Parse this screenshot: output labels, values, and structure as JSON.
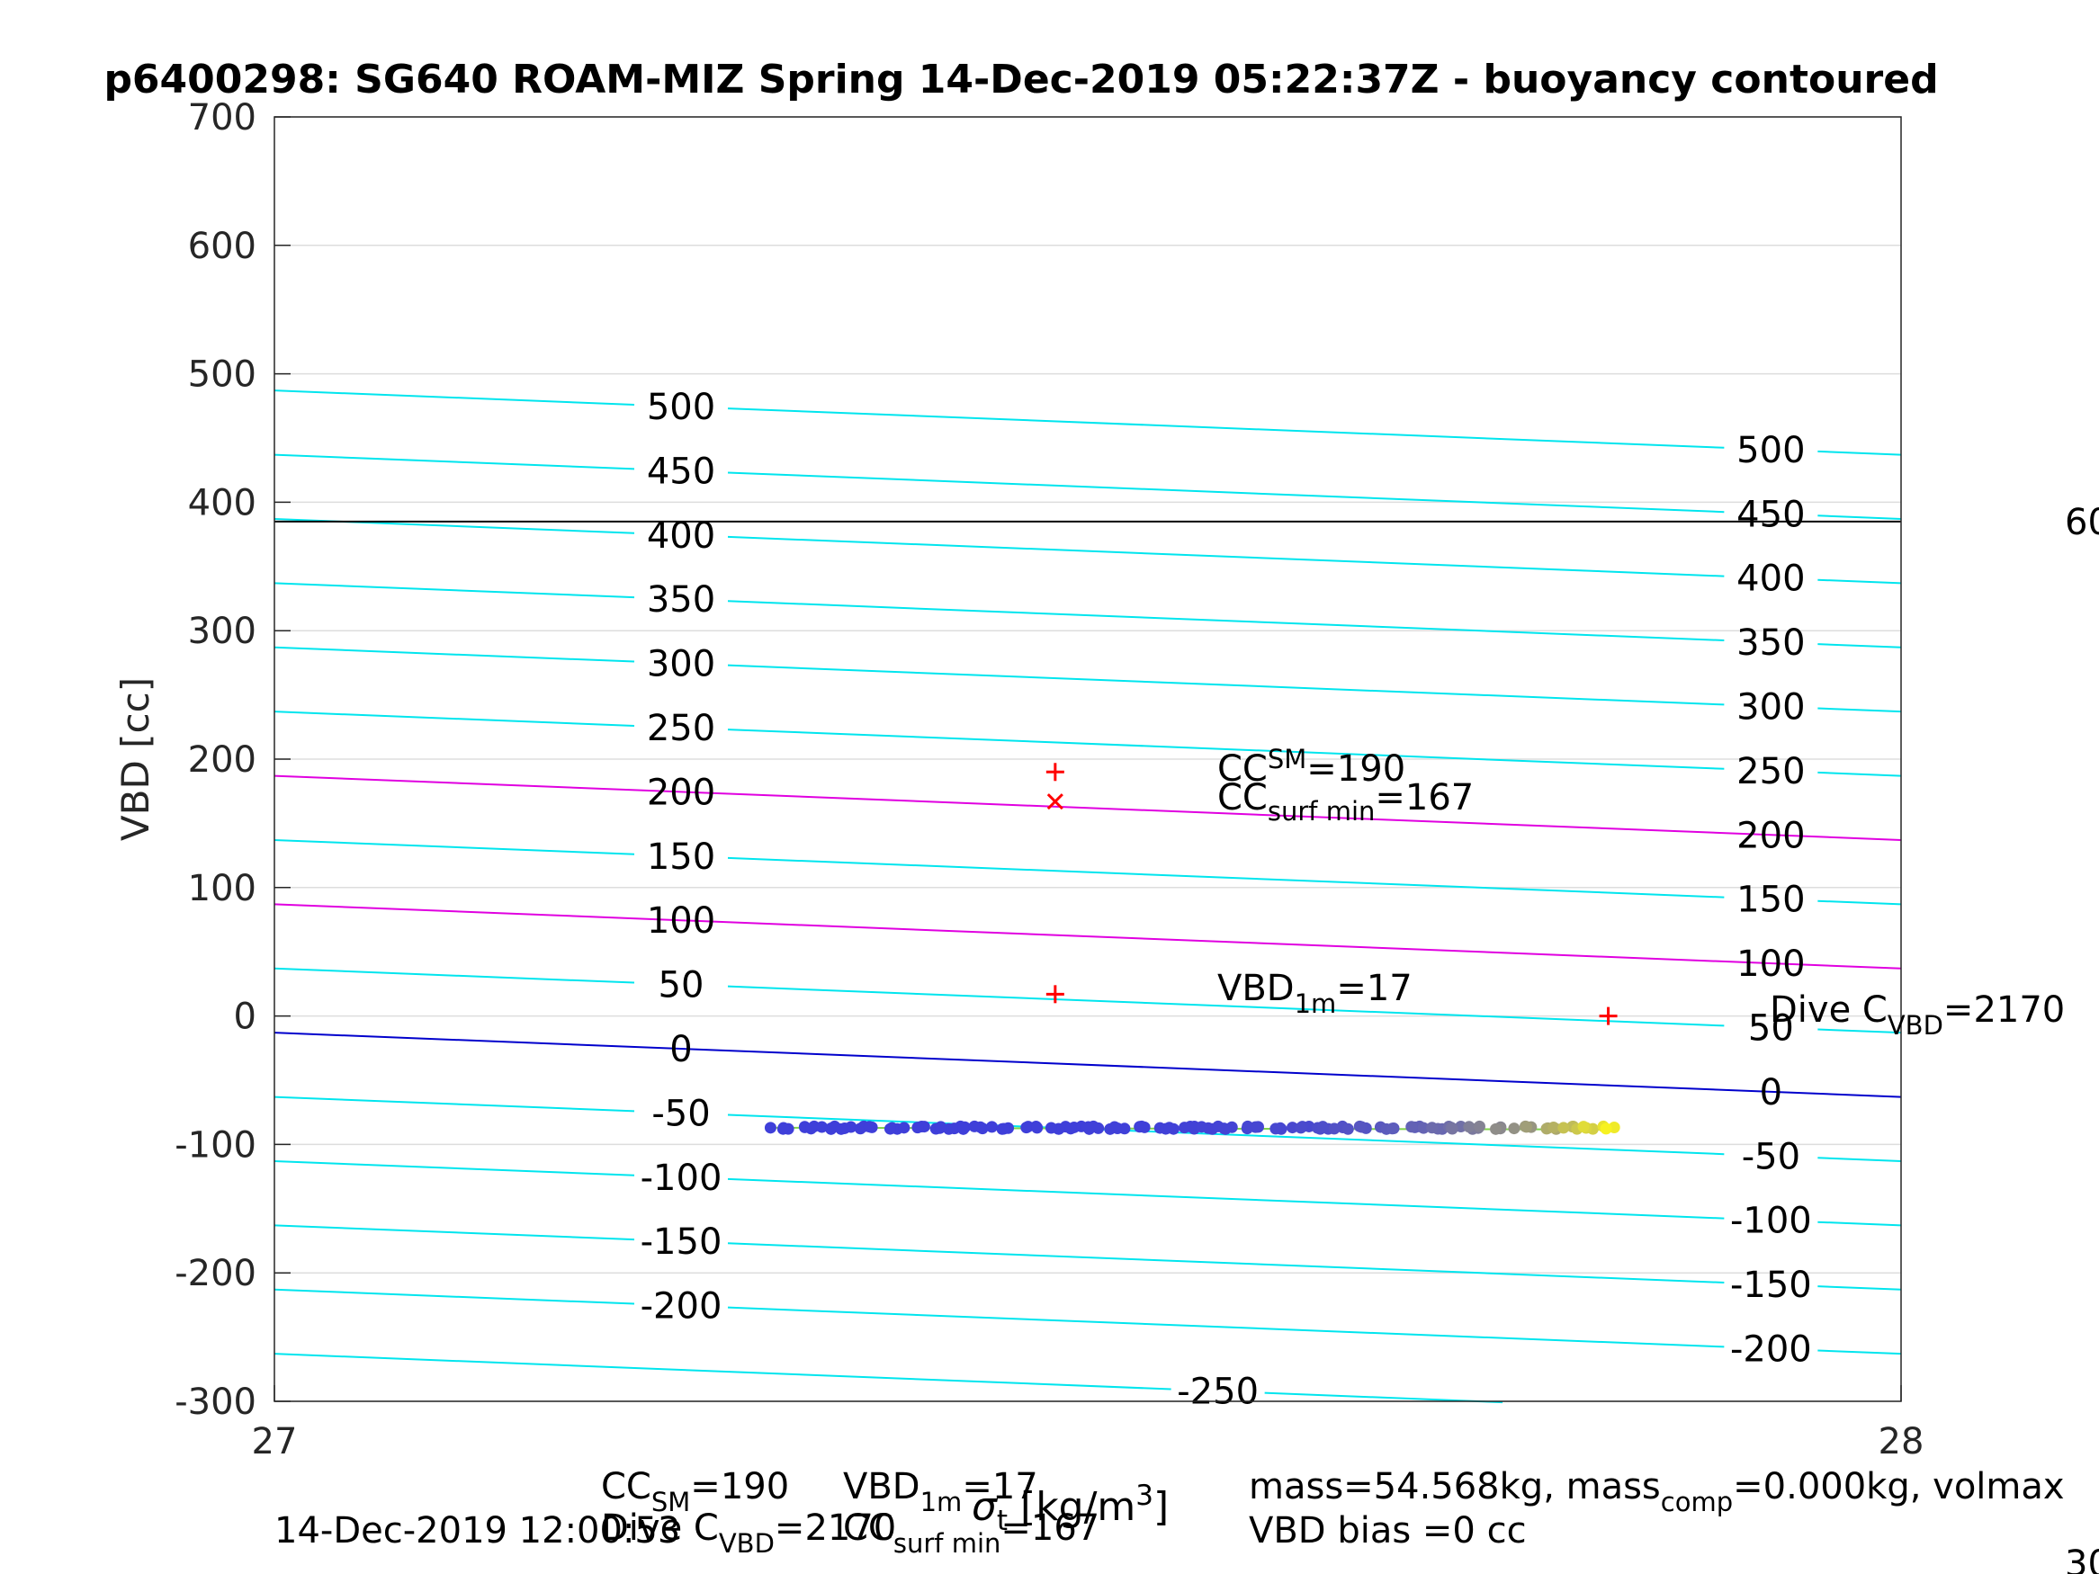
{
  "chart_data": {
    "type": "line",
    "title": "p6400298: SG640 ROAM-MIZ Spring 14-Dec-2019 05:22:37Z - buoyancy contoured",
    "xlabel": "σ",
    "xlabel_sub": "t",
    "xlabel_unit": " [kg/m",
    "xlabel_unit_sup": "3",
    "xlabel_unit_end": "]",
    "ylabel": "VBD [cc]",
    "xlim": [
      27,
      28
    ],
    "ylim": [
      -300,
      700
    ],
    "x_ticks": [
      "27",
      "28"
    ],
    "y_ticks": [
      "-300",
      "-200",
      "-100",
      "0",
      "100",
      "200",
      "300",
      "400",
      "500",
      "600",
      "700"
    ],
    "grid": true,
    "colors": {
      "contour": "#00e5ee",
      "contour_highlight": "#e000e0",
      "zero_contour": "#0000cc",
      "reference_line": "#000000",
      "markers": "#ff0000",
      "data_start": "#3f3fd9",
      "data_end": "#f7f221",
      "grid": "#dddddd"
    },
    "buoyancy_contours": {
      "levels": [
        -250,
        -200,
        -150,
        -100,
        -50,
        0,
        50,
        100,
        150,
        200,
        250,
        300,
        350,
        400,
        450,
        500
      ],
      "vbd_at_left": [
        -263,
        -213,
        -163,
        -113,
        -63,
        -13,
        37,
        87,
        137,
        187,
        237,
        287,
        337,
        387,
        437,
        487
      ],
      "vbd_at_right": [
        -313,
        -263,
        -213,
        -163,
        -113,
        -63,
        -13,
        37,
        87,
        137,
        187,
        237,
        287,
        337,
        387,
        437
      ],
      "highlighted_levels": [
        100,
        200
      ],
      "zero_level": 0,
      "label_x": 27.25,
      "right_label_x": 27.92
    },
    "reference_line": {
      "vbd": 385,
      "label": "60"
    },
    "markers": [
      {
        "symbol": "+",
        "x": 27.48,
        "y": 190
      },
      {
        "symbol": "x",
        "x": 27.48,
        "y": 167
      },
      {
        "symbol": "+",
        "x": 27.48,
        "y": 17
      },
      {
        "symbol": "+",
        "x": 27.82,
        "y": 0
      }
    ],
    "observations": {
      "x_start": 27.305,
      "x_end": 27.825,
      "vbd": -87,
      "count": 140
    },
    "annotations": {
      "cc_sm": {
        "base": "CC",
        "sup": "SM",
        "value": "=190"
      },
      "cc_surf": {
        "base": "CC",
        "sub": "surf min",
        "value": "=167"
      },
      "vbd_1m": {
        "base": "VBD",
        "sub": "1m",
        "value": "=17"
      },
      "dive_c": {
        "base": "Dive C",
        "sub": "VBD",
        "value": "=2170"
      }
    },
    "footer": {
      "timestamp": "14-Dec-2019 12:00:53",
      "cc_sm_base": "CC",
      "cc_sm_sub": "SM",
      "cc_sm_value": "=190",
      "vbd_base": "VBD",
      "vbd_sub": "1m",
      "vbd_value": "=17",
      "dive_base": "Dive C",
      "dive_sub": "VBD",
      "dive_value": "=2170",
      "cc_surf_base": "CC",
      "cc_surf_sub": "surf min",
      "cc_surf_value": "=167",
      "mass_base": "mass=54.568kg, mass",
      "mass_sub": "comp",
      "mass_value": "=0.000kg, volmax",
      "vbd_bias": "VBD bias =0 cc",
      "right_clip": "30"
    }
  }
}
